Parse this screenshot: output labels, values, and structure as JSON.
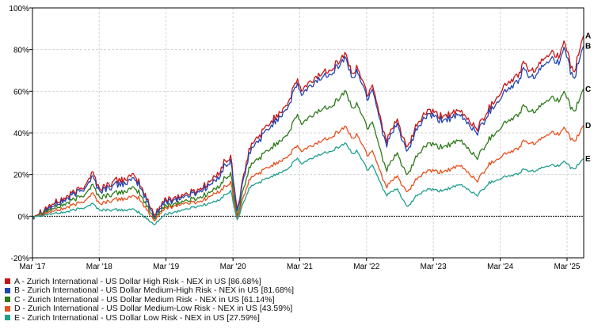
{
  "chart_data": {
    "type": "line",
    "yunit": "%",
    "ylim": [
      -20,
      100
    ],
    "yticks": [
      -20,
      0,
      20,
      40,
      60,
      80,
      100
    ],
    "ytick_labels": [
      "-20%",
      "0%",
      "20%",
      "40%",
      "60%",
      "80%",
      "100%"
    ],
    "xlim": [
      "2017-03-01",
      "2025-05-31"
    ],
    "xticks": [
      "2017-03-01",
      "2018-03-01",
      "2019-03-01",
      "2020-03-01",
      "2021-03-01",
      "2022-03-01",
      "2023-03-01",
      "2024-03-01",
      "2025-03-01"
    ],
    "xtick_labels": [
      "Mar '17",
      "Mar '18",
      "Mar '19",
      "Mar '20",
      "Mar '21",
      "Mar '22",
      "Mar '23",
      "Mar '24",
      "Mar '25"
    ],
    "grid": true,
    "zero_line": true,
    "legend_position": "bottom-left",
    "series": [
      {
        "letter": "A",
        "name": "A - Zurich International - US Dollar High Risk - NEX in US [86.68%]",
        "color": "#c81414",
        "points": [
          [
            "2017-03-01",
            0
          ],
          [
            "2017-06-01",
            5
          ],
          [
            "2017-09-01",
            9
          ],
          [
            "2017-12-01",
            14
          ],
          [
            "2018-01-25",
            21
          ],
          [
            "2018-03-01",
            13
          ],
          [
            "2018-06-01",
            17
          ],
          [
            "2018-09-01",
            19
          ],
          [
            "2018-10-01",
            17
          ],
          [
            "2018-12-24",
            1
          ],
          [
            "2019-03-01",
            8
          ],
          [
            "2019-06-01",
            10
          ],
          [
            "2019-09-01",
            13
          ],
          [
            "2019-12-01",
            19
          ],
          [
            "2020-01-15",
            26
          ],
          [
            "2020-02-19",
            28
          ],
          [
            "2020-03-23",
            3
          ],
          [
            "2020-06-01",
            33
          ],
          [
            "2020-09-01",
            43
          ],
          [
            "2020-12-31",
            55
          ],
          [
            "2021-02-15",
            66
          ],
          [
            "2021-03-10",
            60
          ],
          [
            "2021-06-01",
            67
          ],
          [
            "2021-09-01",
            72
          ],
          [
            "2021-11-08",
            78
          ],
          [
            "2021-12-20",
            66
          ],
          [
            "2022-01-05",
            73
          ],
          [
            "2022-03-08",
            58
          ],
          [
            "2022-04-01",
            64
          ],
          [
            "2022-06-16",
            36
          ],
          [
            "2022-08-15",
            46
          ],
          [
            "2022-10-12",
            32
          ],
          [
            "2022-12-01",
            44
          ],
          [
            "2023-02-01",
            51
          ],
          [
            "2023-04-01",
            48
          ],
          [
            "2023-07-31",
            50
          ],
          [
            "2023-10-27",
            42
          ],
          [
            "2023-12-31",
            52
          ],
          [
            "2024-03-28",
            63
          ],
          [
            "2024-06-01",
            67
          ],
          [
            "2024-07-16",
            75
          ],
          [
            "2024-08-05",
            68
          ],
          [
            "2024-10-15",
            74
          ],
          [
            "2024-12-06",
            80
          ],
          [
            "2025-01-15",
            76
          ],
          [
            "2025-02-15",
            83
          ],
          [
            "2025-04-08",
            67
          ],
          [
            "2025-05-01",
            78
          ],
          [
            "2025-05-31",
            86.68
          ]
        ]
      },
      {
        "letter": "B",
        "name": "B - Zurich International - US Dollar Medium-High Risk - NEX in US [81.68%]",
        "color": "#2145b3",
        "points": [
          [
            "2017-03-01",
            0
          ],
          [
            "2017-06-01",
            4
          ],
          [
            "2017-09-01",
            8
          ],
          [
            "2017-12-01",
            13
          ],
          [
            "2018-01-25",
            19
          ],
          [
            "2018-03-01",
            12
          ],
          [
            "2018-06-01",
            15
          ],
          [
            "2018-09-01",
            17
          ],
          [
            "2018-10-01",
            16
          ],
          [
            "2018-12-24",
            0
          ],
          [
            "2019-03-01",
            7
          ],
          [
            "2019-06-01",
            9
          ],
          [
            "2019-09-01",
            12
          ],
          [
            "2019-12-01",
            17
          ],
          [
            "2020-01-15",
            24
          ],
          [
            "2020-02-19",
            26
          ],
          [
            "2020-03-23",
            2
          ],
          [
            "2020-06-01",
            31
          ],
          [
            "2020-09-01",
            41
          ],
          [
            "2020-12-31",
            53
          ],
          [
            "2021-02-15",
            64
          ],
          [
            "2021-03-10",
            58
          ],
          [
            "2021-06-01",
            65
          ],
          [
            "2021-09-01",
            70
          ],
          [
            "2021-11-08",
            76
          ],
          [
            "2021-12-20",
            64
          ],
          [
            "2022-01-05",
            71
          ],
          [
            "2022-03-08",
            56
          ],
          [
            "2022-04-01",
            62
          ],
          [
            "2022-06-16",
            34
          ],
          [
            "2022-08-15",
            44
          ],
          [
            "2022-10-12",
            30
          ],
          [
            "2022-12-01",
            42
          ],
          [
            "2023-02-01",
            49
          ],
          [
            "2023-04-01",
            46
          ],
          [
            "2023-07-31",
            48
          ],
          [
            "2023-10-27",
            40
          ],
          [
            "2023-12-31",
            50
          ],
          [
            "2024-03-28",
            60
          ],
          [
            "2024-06-01",
            64
          ],
          [
            "2024-07-16",
            72
          ],
          [
            "2024-08-05",
            65
          ],
          [
            "2024-10-15",
            71
          ],
          [
            "2024-12-06",
            77
          ],
          [
            "2025-01-15",
            73
          ],
          [
            "2025-02-15",
            80
          ],
          [
            "2025-04-08",
            64
          ],
          [
            "2025-05-01",
            74
          ],
          [
            "2025-05-31",
            81.68
          ]
        ]
      },
      {
        "letter": "C",
        "name": "C - Zurich International - US Dollar Medium Risk - NEX in US [61.14%]",
        "color": "#2e7a1a",
        "points": [
          [
            "2017-03-01",
            0
          ],
          [
            "2017-06-01",
            3
          ],
          [
            "2017-09-01",
            6
          ],
          [
            "2017-12-01",
            10
          ],
          [
            "2018-01-25",
            15
          ],
          [
            "2018-03-01",
            9
          ],
          [
            "2018-06-01",
            11
          ],
          [
            "2018-09-01",
            13
          ],
          [
            "2018-10-01",
            12
          ],
          [
            "2018-12-24",
            -1
          ],
          [
            "2019-03-01",
            5
          ],
          [
            "2019-06-01",
            7
          ],
          [
            "2019-09-01",
            9
          ],
          [
            "2019-12-01",
            13
          ],
          [
            "2020-01-15",
            18
          ],
          [
            "2020-02-19",
            20
          ],
          [
            "2020-03-23",
            0
          ],
          [
            "2020-06-01",
            24
          ],
          [
            "2020-09-01",
            31
          ],
          [
            "2020-12-31",
            40
          ],
          [
            "2021-02-15",
            49
          ],
          [
            "2021-03-10",
            44
          ],
          [
            "2021-06-01",
            50
          ],
          [
            "2021-09-01",
            54
          ],
          [
            "2021-11-08",
            60
          ],
          [
            "2021-12-20",
            50
          ],
          [
            "2022-01-05",
            55
          ],
          [
            "2022-03-08",
            42
          ],
          [
            "2022-04-01",
            46
          ],
          [
            "2022-06-16",
            22
          ],
          [
            "2022-08-15",
            30
          ],
          [
            "2022-10-12",
            19
          ],
          [
            "2022-12-01",
            29
          ],
          [
            "2023-02-01",
            35
          ],
          [
            "2023-04-01",
            33
          ],
          [
            "2023-07-31",
            36
          ],
          [
            "2023-10-27",
            28
          ],
          [
            "2023-12-31",
            37
          ],
          [
            "2024-03-28",
            45
          ],
          [
            "2024-06-01",
            48
          ],
          [
            "2024-07-16",
            54
          ],
          [
            "2024-08-05",
            49
          ],
          [
            "2024-10-15",
            53
          ],
          [
            "2024-12-06",
            58
          ],
          [
            "2025-01-15",
            55
          ],
          [
            "2025-02-15",
            59
          ],
          [
            "2025-04-08",
            49
          ],
          [
            "2025-05-01",
            55
          ],
          [
            "2025-05-31",
            61.14
          ]
        ]
      },
      {
        "letter": "D",
        "name": "D - Zurich International - US Dollar Medium-Low Risk - NEX in US [43.59%]",
        "color": "#e8501e",
        "points": [
          [
            "2017-03-01",
            0
          ],
          [
            "2017-06-01",
            2
          ],
          [
            "2017-09-01",
            4
          ],
          [
            "2017-12-01",
            7
          ],
          [
            "2018-01-25",
            11
          ],
          [
            "2018-03-01",
            6
          ],
          [
            "2018-06-01",
            8
          ],
          [
            "2018-09-01",
            9
          ],
          [
            "2018-10-01",
            9
          ],
          [
            "2018-12-24",
            -2
          ],
          [
            "2019-03-01",
            4
          ],
          [
            "2019-06-01",
            6
          ],
          [
            "2019-09-01",
            7
          ],
          [
            "2019-12-01",
            11
          ],
          [
            "2020-01-15",
            14
          ],
          [
            "2020-02-19",
            16
          ],
          [
            "2020-03-23",
            -1
          ],
          [
            "2020-06-01",
            18
          ],
          [
            "2020-09-01",
            23
          ],
          [
            "2020-12-31",
            29
          ],
          [
            "2021-02-15",
            34
          ],
          [
            "2021-03-10",
            31
          ],
          [
            "2021-06-01",
            35
          ],
          [
            "2021-09-01",
            39
          ],
          [
            "2021-11-08",
            43
          ],
          [
            "2021-12-20",
            36
          ],
          [
            "2022-01-05",
            40
          ],
          [
            "2022-03-08",
            29
          ],
          [
            "2022-04-01",
            32
          ],
          [
            "2022-06-16",
            14
          ],
          [
            "2022-08-15",
            19
          ],
          [
            "2022-10-12",
            11
          ],
          [
            "2022-12-01",
            18
          ],
          [
            "2023-02-01",
            22
          ],
          [
            "2023-04-01",
            21
          ],
          [
            "2023-07-31",
            24
          ],
          [
            "2023-10-27",
            17
          ],
          [
            "2023-12-31",
            25
          ],
          [
            "2024-03-28",
            30
          ],
          [
            "2024-06-01",
            32
          ],
          [
            "2024-07-16",
            37
          ],
          [
            "2024-08-05",
            34
          ],
          [
            "2024-10-15",
            37
          ],
          [
            "2024-12-06",
            41
          ],
          [
            "2025-01-15",
            39
          ],
          [
            "2025-02-15",
            42
          ],
          [
            "2025-04-08",
            35
          ],
          [
            "2025-05-01",
            39
          ],
          [
            "2025-05-31",
            43.59
          ]
        ]
      },
      {
        "letter": "E",
        "name": "E - Zurich International - US Dollar Low Risk - NEX in US [27.59%]",
        "color": "#1f9e8e",
        "points": [
          [
            "2017-03-01",
            0
          ],
          [
            "2017-06-01",
            1
          ],
          [
            "2017-09-01",
            2
          ],
          [
            "2017-12-01",
            4
          ],
          [
            "2018-01-25",
            6
          ],
          [
            "2018-03-01",
            3
          ],
          [
            "2018-06-01",
            3
          ],
          [
            "2018-09-01",
            3
          ],
          [
            "2018-10-01",
            2
          ],
          [
            "2018-12-24",
            -4
          ],
          [
            "2019-03-01",
            1
          ],
          [
            "2019-06-01",
            3
          ],
          [
            "2019-09-01",
            5
          ],
          [
            "2019-12-01",
            7
          ],
          [
            "2020-01-15",
            10
          ],
          [
            "2020-02-19",
            12
          ],
          [
            "2020-03-23",
            -2
          ],
          [
            "2020-06-01",
            14
          ],
          [
            "2020-09-01",
            18
          ],
          [
            "2020-12-31",
            23
          ],
          [
            "2021-02-15",
            28
          ],
          [
            "2021-03-10",
            25
          ],
          [
            "2021-06-01",
            29
          ],
          [
            "2021-09-01",
            32
          ],
          [
            "2021-11-08",
            35
          ],
          [
            "2021-12-20",
            29
          ],
          [
            "2022-01-05",
            32
          ],
          [
            "2022-03-08",
            22
          ],
          [
            "2022-04-01",
            25
          ],
          [
            "2022-06-16",
            10
          ],
          [
            "2022-08-15",
            13
          ],
          [
            "2022-10-12",
            4
          ],
          [
            "2022-12-01",
            10
          ],
          [
            "2023-02-01",
            13
          ],
          [
            "2023-04-01",
            12
          ],
          [
            "2023-07-31",
            15
          ],
          [
            "2023-10-27",
            10
          ],
          [
            "2023-12-31",
            16
          ],
          [
            "2024-03-28",
            19
          ],
          [
            "2024-06-01",
            20
          ],
          [
            "2024-07-16",
            23
          ],
          [
            "2024-08-05",
            21
          ],
          [
            "2024-10-15",
            23
          ],
          [
            "2024-12-06",
            25
          ],
          [
            "2025-01-15",
            24
          ],
          [
            "2025-02-15",
            26
          ],
          [
            "2025-04-08",
            22
          ],
          [
            "2025-05-01",
            25
          ],
          [
            "2025-05-31",
            27.59
          ]
        ]
      }
    ]
  }
}
